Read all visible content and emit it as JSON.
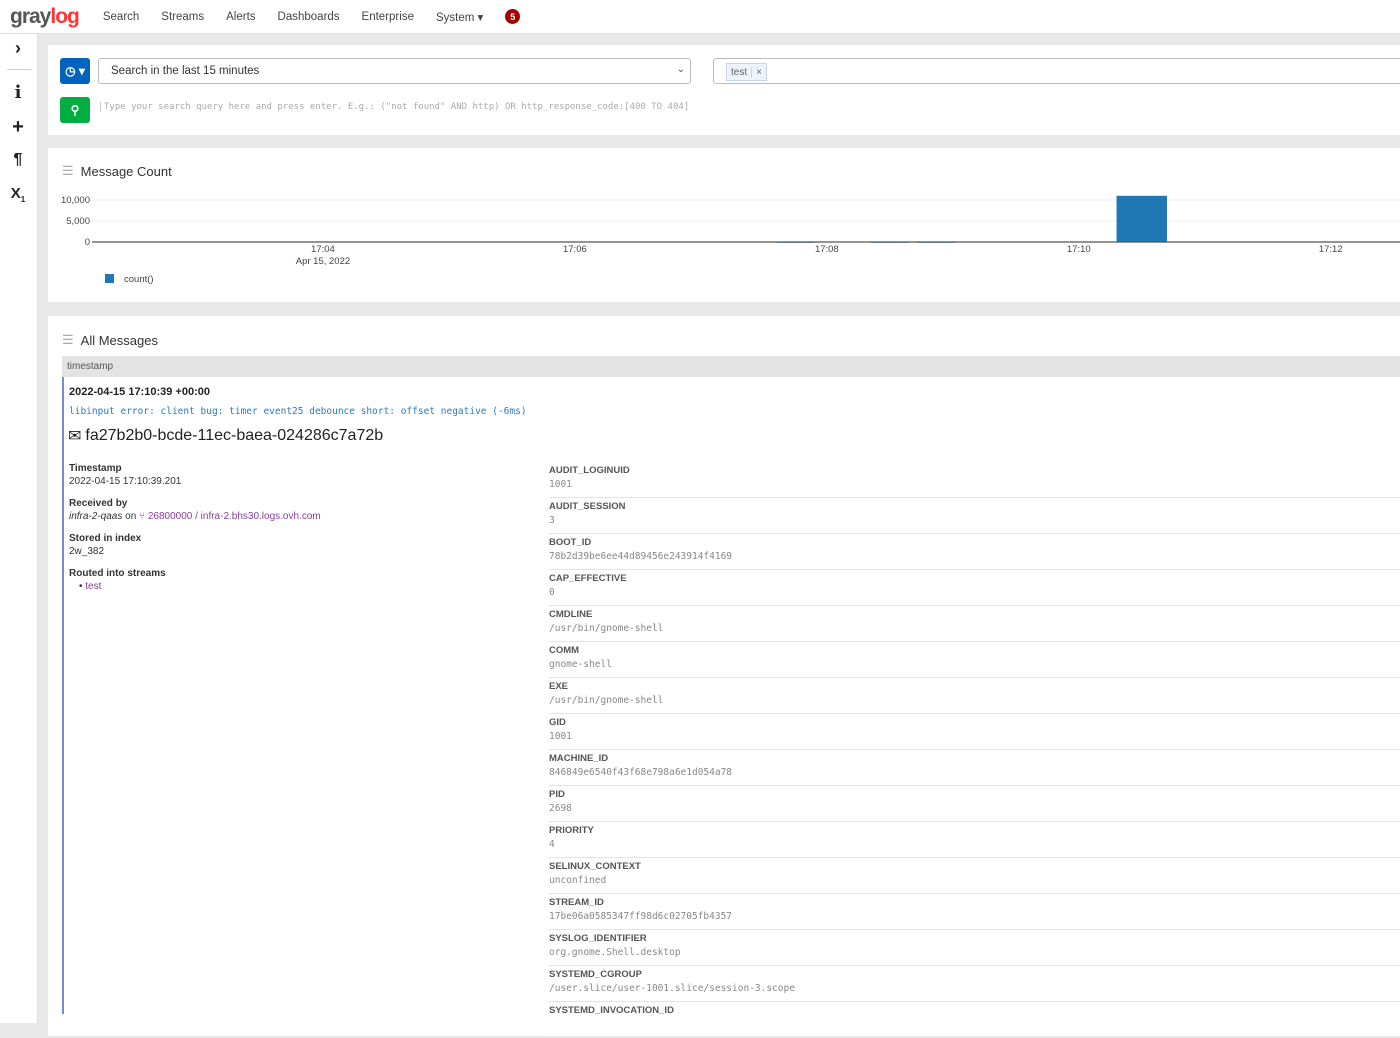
{
  "nav": {
    "logo_a": "gray",
    "logo_b": "log",
    "items": [
      "Search",
      "Streams",
      "Alerts",
      "Dashboards",
      "Enterprise",
      "System ▾"
    ],
    "notifications": "5"
  },
  "sidebar": {
    "icons": [
      "chevron-right-icon",
      "info-icon",
      "plus-icon",
      "paragraph-icon",
      "subscript-icon"
    ]
  },
  "search": {
    "timerange": "Search in the last 15 minutes",
    "stream_tag": "test",
    "query_placeholder": "Type your search query here and press enter. E.g.: (\"not found\" AND http) OR http_response_code:[400 TO 404]"
  },
  "colors": {
    "primary": "#0063be",
    "success": "#00ae42",
    "bar": "#1f77b4",
    "brand": "#ff3633"
  },
  "chart": {
    "title": "Message Count",
    "date_label": "Apr 15, 2022"
  },
  "chart_data": {
    "type": "bar",
    "title": "Message Count",
    "legend": [
      "count()"
    ],
    "legend_position": "bottom-left",
    "yticks": [
      "0",
      "5,000",
      "10,000"
    ],
    "ylim": [
      0,
      10000
    ],
    "xticks": [
      "17:04",
      "17:06",
      "17:08",
      "17:10",
      "17:12"
    ],
    "xlim": [
      "17:02:10",
      "17:12:33"
    ],
    "grid": true,
    "series": [
      {
        "name": "count()",
        "bins": [
          {
            "start": "17:07:36",
            "end": "17:07:54",
            "value": 50
          },
          {
            "start": "17:08:21",
            "end": "17:08:39",
            "value": 50
          },
          {
            "start": "17:08:43",
            "end": "17:09:01",
            "value": 50
          },
          {
            "start": "17:10:18",
            "end": "17:10:42",
            "value": 11000
          }
        ]
      }
    ]
  },
  "messages": {
    "title": "All Messages",
    "column": "timestamp",
    "timestamp": "2022-04-15 17:10:39 +00:00",
    "message": "libinput error: client bug: timer event25 debounce short: offset negative (-6ms)",
    "id": "fa27b2b0-bcde-11ec-baea-024286c7a72b",
    "ts_label": "Timestamp",
    "ts_value": "2022-04-15 17:10:39.201",
    "recv_label": "Received by",
    "recv_node": "infra-2-qaas",
    "recv_on": " on ",
    "recv_input": "26800000 / infra-2.bhs30.logs.ovh.com",
    "index_label": "Stored in index",
    "index_value": "2w_382",
    "streams_label": "Routed into streams",
    "stream": "test",
    "fields": [
      [
        "AUDIT_LOGINUID",
        "1001"
      ],
      [
        "AUDIT_SESSION",
        "3"
      ],
      [
        "BOOT_ID",
        "78b2d39be6ee44d89456e243914f4169"
      ],
      [
        "CAP_EFFECTIVE",
        "0"
      ],
      [
        "CMDLINE",
        "/usr/bin/gnome-shell"
      ],
      [
        "COMM",
        "gnome-shell"
      ],
      [
        "EXE",
        "/usr/bin/gnome-shell"
      ],
      [
        "GID",
        "1001"
      ],
      [
        "MACHINE_ID",
        "846849e6540f43f68e798a6e1d054a78"
      ],
      [
        "PID",
        "2698"
      ],
      [
        "PRIORITY",
        "4"
      ],
      [
        "SELINUX_CONTEXT",
        "unconfined"
      ],
      [
        "STREAM_ID",
        "17be06a0585347ff98d6c02705fb4357"
      ],
      [
        "SYSLOG_IDENTIFIER",
        "org.gnome.Shell.desktop"
      ],
      [
        "SYSTEMD_CGROUP",
        "/user.slice/user-1001.slice/session-3.scope"
      ],
      [
        "SYSTEMD_INVOCATION_ID",
        ""
      ]
    ]
  }
}
